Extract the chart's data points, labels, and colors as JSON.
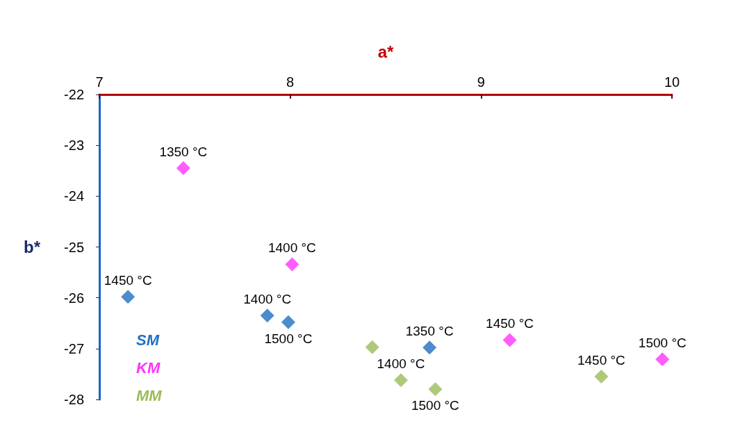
{
  "chart_data": {
    "type": "scatter",
    "xlabel": "a*",
    "ylabel": "b*",
    "xlim": [
      7,
      10
    ],
    "xticks": [
      7,
      8,
      9,
      10
    ],
    "ylim": [
      -28,
      -22
    ],
    "yticks": [
      -28,
      -27,
      -26,
      -25,
      -24,
      -23,
      -22
    ],
    "marker": "diamond",
    "legend": "bottom left",
    "series": [
      {
        "name": "SM",
        "color": "#1f6fbf",
        "x": [
          7.15,
          7.88,
          7.99,
          8.73
        ],
        "values": [
          -25.98,
          -26.35,
          -26.48,
          -26.98
        ]
      },
      {
        "name": "KM",
        "color": "#ff33ff",
        "x": [
          7.44,
          8.01,
          9.15,
          9.95
        ],
        "values": [
          -23.45,
          -25.34,
          -26.83,
          -27.21
        ]
      },
      {
        "name": "MM",
        "color": "#9bbb59",
        "x": [
          8.43,
          8.58,
          8.76,
          9.63
        ],
        "values": [
          -26.97,
          -27.62,
          -27.8,
          -27.55
        ]
      }
    ],
    "annotations": [
      {
        "text": "1450 °C",
        "x": 7.15,
        "y": -25.98
      },
      {
        "text": "1400 °C",
        "x": 7.88,
        "y": -26.35
      },
      {
        "text": "1500 °C",
        "x": 7.99,
        "y": -26.48
      },
      {
        "text": "1350 °C",
        "x": 8.73,
        "y": -26.98
      },
      {
        "text": "1350 °C",
        "x": 7.44,
        "y": -23.45
      },
      {
        "text": "1400 °C",
        "x": 8.01,
        "y": -25.34
      },
      {
        "text": "1450 °C",
        "x": 9.15,
        "y": -26.83
      },
      {
        "text": "1500 °C",
        "x": 9.95,
        "y": -27.21
      },
      {
        "text": "1400 °C",
        "x": 8.58,
        "y": -27.62
      },
      {
        "text": "1500 °C",
        "x": 8.76,
        "y": -27.8
      },
      {
        "text": "1450 °C",
        "x": 9.63,
        "y": -27.55
      }
    ]
  }
}
